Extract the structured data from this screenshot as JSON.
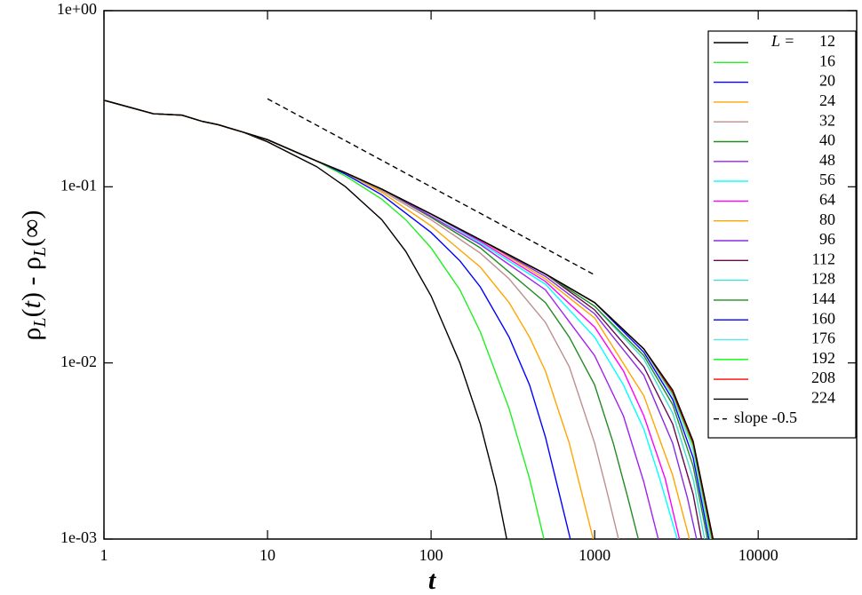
{
  "chart_data": {
    "type": "line",
    "xscale": "log",
    "yscale": "log",
    "x_label": "t",
    "y_label": [
      "ρ",
      "L",
      "(",
      "t",
      ") - ρ",
      "L",
      "(∞)"
    ],
    "xlim": [
      1,
      40000
    ],
    "ylim": [
      0.001,
      1
    ],
    "xticks": [
      1,
      10,
      100,
      1000,
      10000
    ],
    "yticks": [
      {
        "value": 1,
        "label": "1e+00"
      },
      {
        "value": 0.1,
        "label": "1e-01"
      },
      {
        "value": 0.01,
        "label": "1e-02"
      },
      {
        "value": 0.001,
        "label": "1e-03"
      }
    ],
    "legend_title": "L =",
    "legend": "upper right",
    "series": [
      {
        "name": "12",
        "color": "#000000",
        "x": [
          1,
          2,
          3,
          4,
          5,
          7,
          10,
          20,
          30,
          50,
          70,
          100,
          150,
          200,
          250,
          290
        ],
        "values": [
          0.31,
          0.26,
          0.255,
          0.235,
          0.225,
          0.205,
          0.18,
          0.13,
          0.1,
          0.065,
          0.043,
          0.024,
          0.01,
          0.0045,
          0.002,
          0.001
        ]
      },
      {
        "name": "16",
        "color": "#22ee22",
        "x": [
          1,
          2,
          3,
          4,
          5,
          7,
          10,
          20,
          30,
          50,
          70,
          100,
          150,
          200,
          300,
          400,
          490
        ],
        "values": [
          0.31,
          0.26,
          0.255,
          0.235,
          0.225,
          0.205,
          0.185,
          0.14,
          0.115,
          0.085,
          0.065,
          0.045,
          0.026,
          0.015,
          0.0055,
          0.0022,
          0.001
        ]
      },
      {
        "name": "20",
        "color": "#0000ff",
        "x": [
          1,
          2,
          3,
          4,
          5,
          7,
          10,
          20,
          30,
          50,
          100,
          150,
          200,
          300,
          400,
          500,
          600,
          710
        ],
        "values": [
          0.31,
          0.26,
          0.255,
          0.235,
          0.225,
          0.205,
          0.185,
          0.14,
          0.118,
          0.09,
          0.055,
          0.038,
          0.027,
          0.014,
          0.0075,
          0.0038,
          0.0019,
          0.001
        ]
      },
      {
        "name": "24",
        "color": "#ffa500",
        "x": [
          1,
          2,
          3,
          4,
          5,
          7,
          10,
          20,
          30,
          50,
          100,
          200,
          300,
          400,
          500,
          700,
          850,
          980
        ],
        "values": [
          0.31,
          0.26,
          0.255,
          0.235,
          0.225,
          0.205,
          0.185,
          0.14,
          0.12,
          0.093,
          0.06,
          0.035,
          0.022,
          0.014,
          0.009,
          0.0035,
          0.0017,
          0.001
        ]
      },
      {
        "name": "32",
        "color": "#bc8f8f",
        "x": [
          1,
          2,
          3,
          4,
          5,
          7,
          10,
          20,
          30,
          50,
          100,
          200,
          300,
          500,
          700,
          1000,
          1200,
          1400
        ],
        "values": [
          0.31,
          0.26,
          0.255,
          0.235,
          0.225,
          0.205,
          0.185,
          0.14,
          0.12,
          0.095,
          0.065,
          0.042,
          0.03,
          0.017,
          0.0095,
          0.0035,
          0.0018,
          0.001
        ]
      },
      {
        "name": "40",
        "color": "#228b22",
        "x": [
          1,
          2,
          3,
          4,
          5,
          7,
          10,
          20,
          30,
          50,
          100,
          200,
          500,
          700,
          1000,
          1300,
          1600,
          1850
        ],
        "values": [
          0.31,
          0.26,
          0.255,
          0.235,
          0.225,
          0.205,
          0.185,
          0.14,
          0.12,
          0.097,
          0.067,
          0.045,
          0.022,
          0.014,
          0.0075,
          0.0035,
          0.0017,
          0.001
        ]
      },
      {
        "name": "48",
        "color": "#a020f0",
        "x": [
          1,
          2,
          3,
          4,
          5,
          7,
          10,
          20,
          30,
          50,
          100,
          200,
          500,
          1000,
          1500,
          2000,
          2450
        ],
        "values": [
          0.31,
          0.26,
          0.255,
          0.235,
          0.225,
          0.205,
          0.185,
          0.14,
          0.12,
          0.097,
          0.068,
          0.047,
          0.026,
          0.011,
          0.005,
          0.0021,
          0.001
        ]
      },
      {
        "name": "56",
        "color": "#00ffff",
        "x": [
          1,
          2,
          3,
          4,
          5,
          7,
          10,
          20,
          30,
          50,
          100,
          200,
          500,
          1000,
          1500,
          2000,
          2500,
          3200
        ],
        "values": [
          0.31,
          0.26,
          0.255,
          0.235,
          0.225,
          0.205,
          0.185,
          0.14,
          0.12,
          0.097,
          0.07,
          0.048,
          0.028,
          0.014,
          0.0075,
          0.0042,
          0.0022,
          0.001
        ]
      },
      {
        "name": "64",
        "color": "#ff00ff",
        "x": [
          1,
          2,
          3,
          4,
          5,
          7,
          10,
          20,
          30,
          50,
          100,
          200,
          500,
          1000,
          1500,
          2000,
          2700,
          3300
        ],
        "values": [
          0.31,
          0.26,
          0.255,
          0.235,
          0.225,
          0.205,
          0.185,
          0.14,
          0.12,
          0.097,
          0.07,
          0.049,
          0.029,
          0.016,
          0.009,
          0.005,
          0.0022,
          0.001
        ]
      },
      {
        "name": "80",
        "color": "#ffa500",
        "x": [
          1,
          2,
          3,
          4,
          5,
          7,
          10,
          20,
          30,
          50,
          100,
          200,
          500,
          1000,
          2000,
          3000,
          3800
        ],
        "values": [
          0.31,
          0.26,
          0.255,
          0.235,
          0.225,
          0.205,
          0.185,
          0.14,
          0.12,
          0.097,
          0.07,
          0.05,
          0.03,
          0.018,
          0.0065,
          0.0023,
          0.001
        ]
      },
      {
        "name": "96",
        "color": "#8a2be2",
        "x": [
          1,
          2,
          3,
          4,
          5,
          7,
          10,
          20,
          30,
          50,
          100,
          200,
          500,
          1000,
          2000,
          3000,
          3700,
          4200
        ],
        "values": [
          0.31,
          0.26,
          0.255,
          0.235,
          0.225,
          0.205,
          0.185,
          0.14,
          0.12,
          0.097,
          0.07,
          0.05,
          0.031,
          0.019,
          0.0085,
          0.0035,
          0.0017,
          0.001
        ]
      },
      {
        "name": "112",
        "color": "#67074e",
        "x": [
          1,
          2,
          3,
          4,
          5,
          7,
          10,
          20,
          30,
          50,
          100,
          200,
          500,
          1000,
          2000,
          3000,
          4000,
          4500
        ],
        "values": [
          0.31,
          0.26,
          0.255,
          0.235,
          0.225,
          0.205,
          0.185,
          0.14,
          0.12,
          0.097,
          0.07,
          0.05,
          0.032,
          0.02,
          0.0095,
          0.0045,
          0.0018,
          0.001
        ]
      },
      {
        "name": "128",
        "color": "#40e0d0",
        "x": [
          1,
          2,
          3,
          4,
          5,
          7,
          10,
          20,
          30,
          50,
          100,
          200,
          500,
          1000,
          2000,
          3000,
          4000,
          4700
        ],
        "values": [
          0.31,
          0.26,
          0.255,
          0.235,
          0.225,
          0.205,
          0.185,
          0.14,
          0.12,
          0.097,
          0.07,
          0.05,
          0.032,
          0.021,
          0.0105,
          0.0052,
          0.0022,
          0.001
        ]
      },
      {
        "name": "144",
        "color": "#228b22",
        "x": [
          1,
          2,
          3,
          4,
          5,
          7,
          10,
          20,
          30,
          50,
          100,
          200,
          500,
          1000,
          2000,
          3000,
          4000,
          4900
        ],
        "values": [
          0.31,
          0.26,
          0.255,
          0.235,
          0.225,
          0.205,
          0.185,
          0.14,
          0.12,
          0.097,
          0.07,
          0.05,
          0.032,
          0.021,
          0.011,
          0.0058,
          0.0026,
          0.001
        ]
      },
      {
        "name": "160",
        "color": "#0000ff",
        "x": [
          1,
          2,
          3,
          4,
          5,
          7,
          10,
          20,
          30,
          50,
          100,
          200,
          500,
          1000,
          2000,
          3000,
          4000,
          5000
        ],
        "values": [
          0.31,
          0.26,
          0.255,
          0.235,
          0.225,
          0.205,
          0.185,
          0.14,
          0.12,
          0.097,
          0.07,
          0.05,
          0.032,
          0.022,
          0.0115,
          0.0062,
          0.0029,
          0.001
        ]
      },
      {
        "name": "176",
        "color": "#66e0e0",
        "x": [
          1,
          2,
          3,
          4,
          5,
          7,
          10,
          20,
          30,
          50,
          100,
          200,
          500,
          1000,
          2000,
          3000,
          4000,
          5100
        ],
        "values": [
          0.31,
          0.26,
          0.255,
          0.235,
          0.225,
          0.205,
          0.185,
          0.14,
          0.12,
          0.097,
          0.07,
          0.05,
          0.032,
          0.022,
          0.012,
          0.0065,
          0.0032,
          0.001
        ]
      },
      {
        "name": "192",
        "color": "#00ff00",
        "x": [
          1,
          2,
          3,
          4,
          5,
          7,
          10,
          20,
          30,
          50,
          100,
          200,
          500,
          1000,
          2000,
          3000,
          4000,
          5200
        ],
        "values": [
          0.31,
          0.26,
          0.255,
          0.235,
          0.225,
          0.205,
          0.185,
          0.14,
          0.12,
          0.097,
          0.07,
          0.05,
          0.032,
          0.022,
          0.012,
          0.0067,
          0.0034,
          0.001
        ]
      },
      {
        "name": "208",
        "color": "#ff0000",
        "x": [
          1,
          2,
          3,
          4,
          5,
          7,
          10,
          20,
          30,
          50,
          100,
          200,
          500,
          1000,
          2000,
          3000,
          4000,
          5250
        ],
        "values": [
          0.31,
          0.26,
          0.255,
          0.235,
          0.225,
          0.205,
          0.185,
          0.14,
          0.12,
          0.097,
          0.07,
          0.05,
          0.032,
          0.022,
          0.012,
          0.0068,
          0.0035,
          0.001
        ]
      },
      {
        "name": "224",
        "color": "#000000",
        "x": [
          1,
          2,
          3,
          4,
          5,
          7,
          10,
          20,
          30,
          50,
          100,
          200,
          500,
          1000,
          2000,
          3000,
          4000,
          5300
        ],
        "values": [
          0.31,
          0.26,
          0.255,
          0.235,
          0.225,
          0.205,
          0.185,
          0.14,
          0.12,
          0.097,
          0.07,
          0.05,
          0.032,
          0.022,
          0.012,
          0.007,
          0.0036,
          0.001
        ]
      },
      {
        "name": "slope -0.5",
        "color": "#000000",
        "dashed": true,
        "x": [
          10,
          1000
        ],
        "values": [
          0.316,
          0.0316
        ]
      }
    ]
  }
}
